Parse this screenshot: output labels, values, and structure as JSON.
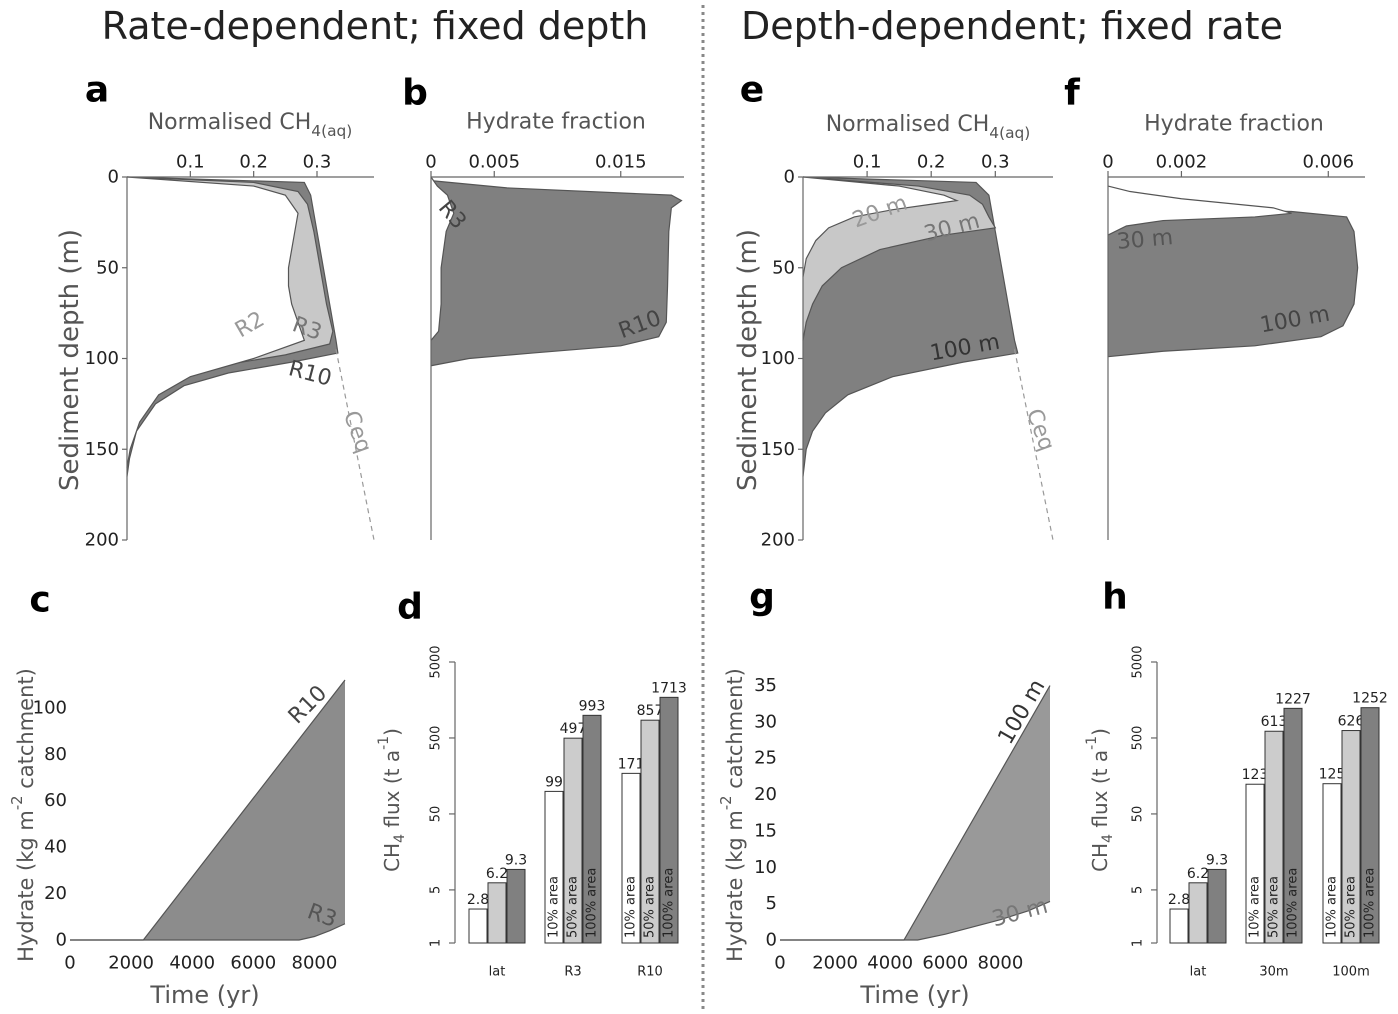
{
  "headings": [
    "Rate-dependent; fixed depth",
    "Depth-dependent; fixed rate"
  ],
  "chart_data": [
    {
      "type": "profile",
      "panel": "a",
      "title": [
        {
          "text": "Normalised CH"
        },
        {
          "text": "4(aq)",
          "shift": "sub"
        }
      ],
      "ylabel": "Sediment depth (m)",
      "xlim": [
        0,
        0.39
      ],
      "xticks": [
        0.1,
        0.2,
        0.3
      ],
      "ylim": [
        0,
        200
      ],
      "yticks": [
        0,
        50,
        100,
        150,
        200
      ],
      "series": [
        {
          "name": "R10",
          "color": "#808080",
          "depth": [
            0,
            3,
            10,
            30,
            50,
            70,
            90,
            97,
            102,
            108,
            115,
            125,
            140,
            155,
            165
          ],
          "values": [
            0,
            0.28,
            0.29,
            0.3,
            0.31,
            0.32,
            0.33,
            0.333,
            0.26,
            0.16,
            0.09,
            0.045,
            0.015,
            0.004,
            0
          ]
        },
        {
          "name": "R3",
          "color": "#c8c8c8",
          "depth": [
            0,
            3,
            8,
            15,
            30,
            50,
            70,
            85,
            92,
            98,
            105,
            112,
            120,
            130,
            145,
            160
          ],
          "values": [
            0,
            0.2,
            0.27,
            0.285,
            0.295,
            0.305,
            0.315,
            0.325,
            0.32,
            0.25,
            0.13,
            0.07,
            0.04,
            0.02,
            0.005,
            0
          ]
        },
        {
          "name": "R2",
          "color": "#ffffff",
          "depth": [
            0,
            5,
            10,
            20,
            30,
            40,
            50,
            60,
            70,
            80,
            90,
            100,
            110,
            120,
            135,
            150,
            160
          ],
          "values": [
            0,
            0.2,
            0.25,
            0.27,
            0.265,
            0.26,
            0.255,
            0.255,
            0.26,
            0.27,
            0.28,
            0.2,
            0.1,
            0.05,
            0.02,
            0.005,
            0
          ]
        }
      ],
      "reference": {
        "name": "Ceq",
        "values": [
          0.33,
          0.39
        ],
        "depth": [
          95,
          200
        ]
      }
    },
    {
      "type": "profile",
      "panel": "b",
      "title": "Hydrate fraction",
      "xlim": [
        0,
        0.02
      ],
      "xticks": [
        0,
        0.005,
        0.015
      ],
      "ylim": [
        0,
        200
      ],
      "series": [
        {
          "name": "R10",
          "color": "#808080",
          "depth": [
            2,
            6,
            10,
            13,
            17,
            30,
            60,
            80,
            88,
            93,
            97,
            100,
            104
          ],
          "values": [
            0,
            0.006,
            0.019,
            0.0198,
            0.019,
            0.0188,
            0.0187,
            0.0186,
            0.018,
            0.015,
            0.008,
            0.003,
            0
          ]
        },
        {
          "name": "R3",
          "color": "#ffffff",
          "depth": [
            0,
            5,
            10,
            20,
            30,
            50,
            70,
            85,
            90
          ],
          "values": [
            0,
            0.0005,
            0.0013,
            0.0018,
            0.0012,
            0.0008,
            0.0008,
            0.0006,
            0
          ]
        }
      ]
    },
    {
      "type": "timeline",
      "panel": "c",
      "xlabel": "Time (yr)",
      "ylabel": [
        {
          "text": "Hydrate (kg m"
        },
        {
          "text": "-2",
          "shift": "super"
        },
        {
          "text": " catchment)"
        }
      ],
      "xlim": [
        0,
        9000
      ],
      "xticks": [
        0,
        2000,
        4000,
        6000,
        8000
      ],
      "ylim": [
        0,
        115
      ],
      "yticks": [
        0,
        20,
        40,
        60,
        80,
        100
      ],
      "series": [
        {
          "name": "R10",
          "color": "#8c8c8c",
          "x": [
            0,
            2400,
            9000
          ],
          "values": [
            0,
            0,
            112
          ]
        },
        {
          "name": "R3",
          "color": "#ffffff",
          "x": [
            0,
            7500,
            8000,
            8500,
            9000
          ],
          "values": [
            0,
            0,
            1.5,
            4,
            7
          ]
        }
      ]
    },
    {
      "type": "bar",
      "panel": "d",
      "log_scale": true,
      "ylabel": [
        {
          "text": "CH"
        },
        {
          "text": "4",
          "shift": "sub"
        },
        {
          "text": " flux (t a"
        },
        {
          "text": "-1",
          "shift": "super"
        },
        {
          "text": ")"
        }
      ],
      "categories": [
        "lat",
        "R3",
        "R10"
      ],
      "ylim": [
        1,
        5000
      ],
      "yticks": [
        1,
        5,
        50,
        500,
        5000
      ],
      "series": [
        {
          "name": "10% area",
          "color": "#ffffff",
          "values": [
            2.8,
            99,
            171
          ]
        },
        {
          "name": "50% area",
          "color": "#cccccc",
          "values": [
            6.2,
            497,
            857
          ]
        },
        {
          "name": "100% area",
          "color": "#808080",
          "values": [
            9.3,
            993,
            1713
          ]
        }
      ]
    },
    {
      "type": "profile",
      "panel": "e",
      "title": [
        {
          "text": "Normalised CH"
        },
        {
          "text": "4(aq)",
          "shift": "sub"
        }
      ],
      "ylabel": "Sediment depth (m)",
      "xlim": [
        0,
        0.39
      ],
      "xticks": [
        0.1,
        0.2,
        0.3
      ],
      "ylim": [
        0,
        200
      ],
      "yticks": [
        0,
        50,
        100,
        150,
        200
      ],
      "series": [
        {
          "name": "100 m",
          "color": "#808080",
          "depth": [
            0,
            3,
            10,
            30,
            50,
            70,
            90,
            97,
            102,
            110,
            120,
            130,
            140,
            150,
            165
          ],
          "values": [
            0,
            0.27,
            0.29,
            0.3,
            0.31,
            0.32,
            0.33,
            0.335,
            0.25,
            0.14,
            0.07,
            0.035,
            0.015,
            0.005,
            0
          ]
        },
        {
          "name": "30 m",
          "color": "#c8c8c8",
          "depth": [
            0,
            5,
            10,
            15,
            22,
            28,
            32,
            40,
            50,
            60,
            70,
            80,
            90
          ],
          "values": [
            0,
            0.18,
            0.26,
            0.28,
            0.29,
            0.3,
            0.22,
            0.12,
            0.06,
            0.03,
            0.015,
            0.005,
            0
          ]
        },
        {
          "name": "20 m",
          "color": "#ffffff",
          "depth": [
            0,
            5,
            10,
            13,
            15,
            18,
            22,
            28,
            35,
            45,
            55
          ],
          "values": [
            0,
            0.15,
            0.22,
            0.24,
            0.2,
            0.14,
            0.08,
            0.04,
            0.02,
            0.005,
            0
          ]
        }
      ],
      "reference": {
        "name": "Ceq",
        "values": [
          0.33,
          0.39
        ],
        "depth": [
          95,
          200
        ]
      }
    },
    {
      "type": "profile",
      "panel": "f",
      "title": "Hydrate fraction",
      "xlim": [
        0,
        0.007
      ],
      "xticks": [
        0,
        0.002,
        0.006
      ],
      "ylim": [
        0,
        200
      ],
      "series": [
        {
          "name": "100 m",
          "color": "#808080",
          "depth": [
            17,
            19,
            22,
            30,
            50,
            70,
            82,
            88,
            93,
            96,
            99
          ],
          "values": [
            0,
            0.005,
            0.0065,
            0.0067,
            0.0068,
            0.0067,
            0.0064,
            0.0058,
            0.004,
            0.0015,
            0
          ]
        },
        {
          "name": "30 m",
          "color": "#ffffff",
          "depth": [
            5,
            8,
            12,
            17,
            20,
            22,
            24,
            27,
            32
          ],
          "values": [
            0,
            0.0006,
            0.002,
            0.0045,
            0.005,
            0.004,
            0.0015,
            0.0005,
            0
          ]
        }
      ]
    },
    {
      "type": "timeline",
      "panel": "g",
      "xlabel": "Time (yr)",
      "ylabel": [
        {
          "text": "Hydrate (kg m"
        },
        {
          "text": "-2",
          "shift": "super"
        },
        {
          "text": " catchment)"
        }
      ],
      "xlim": [
        0,
        9800
      ],
      "xticks": [
        0,
        2000,
        4000,
        6000,
        8000
      ],
      "ylim": [
        0,
        37
      ],
      "yticks": [
        0,
        5,
        10,
        15,
        20,
        25,
        30,
        35
      ],
      "series": [
        {
          "name": "100 m",
          "color": "#999999",
          "x": [
            0,
            4500,
            9800
          ],
          "values": [
            0,
            0,
            35
          ]
        },
        {
          "name": "30 m",
          "color": "#ffffff",
          "x": [
            0,
            5000,
            6000,
            7000,
            8000,
            9000,
            9800
          ],
          "values": [
            0,
            0,
            0.8,
            1.8,
            2.8,
            4,
            5.3
          ]
        }
      ]
    },
    {
      "type": "bar",
      "panel": "h",
      "log_scale": true,
      "ylabel": [
        {
          "text": "CH"
        },
        {
          "text": "4",
          "shift": "sub"
        },
        {
          "text": " flux (t a"
        },
        {
          "text": "-1",
          "shift": "super"
        },
        {
          "text": ")"
        }
      ],
      "categories": [
        "lat",
        "30m",
        "100m"
      ],
      "ylim": [
        1,
        5000
      ],
      "yticks": [
        1,
        5,
        50,
        500,
        5000
      ],
      "series": [
        {
          "name": "10% area",
          "color": "#ffffff",
          "values": [
            2.8,
            123,
            125
          ]
        },
        {
          "name": "50% area",
          "color": "#cccccc",
          "values": [
            6.2,
            613,
            626
          ]
        },
        {
          "name": "100% area",
          "color": "#808080",
          "values": [
            9.3,
            1227,
            1252
          ]
        }
      ]
    }
  ]
}
